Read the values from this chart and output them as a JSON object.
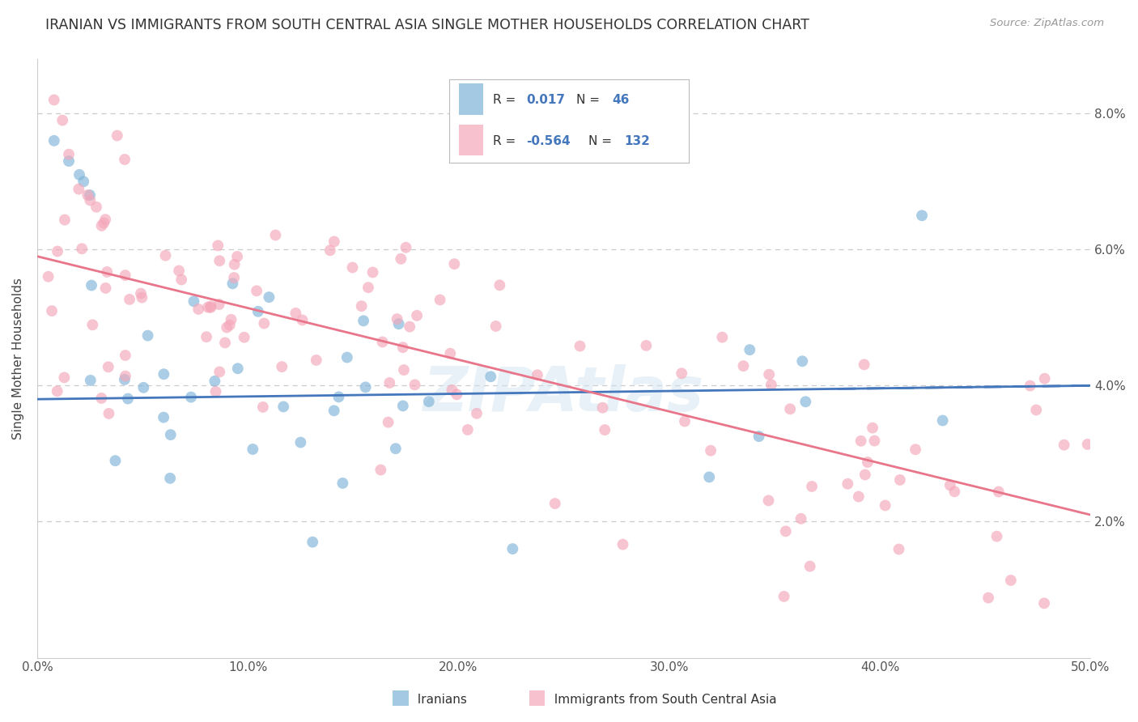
{
  "title": "IRANIAN VS IMMIGRANTS FROM SOUTH CENTRAL ASIA SINGLE MOTHER HOUSEHOLDS CORRELATION CHART",
  "source": "Source: ZipAtlas.com",
  "ylabel": "Single Mother Households",
  "xlim": [
    0.0,
    0.5
  ],
  "ylim": [
    0.0,
    0.088
  ],
  "xtick_labels": [
    "0.0%",
    "10.0%",
    "20.0%",
    "30.0%",
    "40.0%",
    "50.0%"
  ],
  "xtick_values": [
    0.0,
    0.1,
    0.2,
    0.3,
    0.4,
    0.5
  ],
  "ytick_labels": [
    "2.0%",
    "4.0%",
    "6.0%",
    "8.0%"
  ],
  "ytick_values": [
    0.02,
    0.04,
    0.06,
    0.08
  ],
  "iranian_R": 0.017,
  "iranian_N": 46,
  "sca_R": -0.564,
  "sca_N": 132,
  "iranian_color": "#7EB3D8",
  "sca_color": "#F4A7B9",
  "iranian_line_color": "#4477BB",
  "sca_line_color": "#E8758A",
  "background_color": "#FFFFFF",
  "grid_color": "#CCCCCC",
  "legend_text_color": "#4477BB",
  "legend_label_color": "#333333",
  "watermark_color": "#D0E4F0",
  "title_color": "#333333",
  "source_color": "#999999",
  "axis_label_color": "#555555",
  "iranian_trend_y0": 0.038,
  "iranian_trend_y1": 0.04,
  "sca_trend_y0": 0.059,
  "sca_trend_y1": 0.021
}
